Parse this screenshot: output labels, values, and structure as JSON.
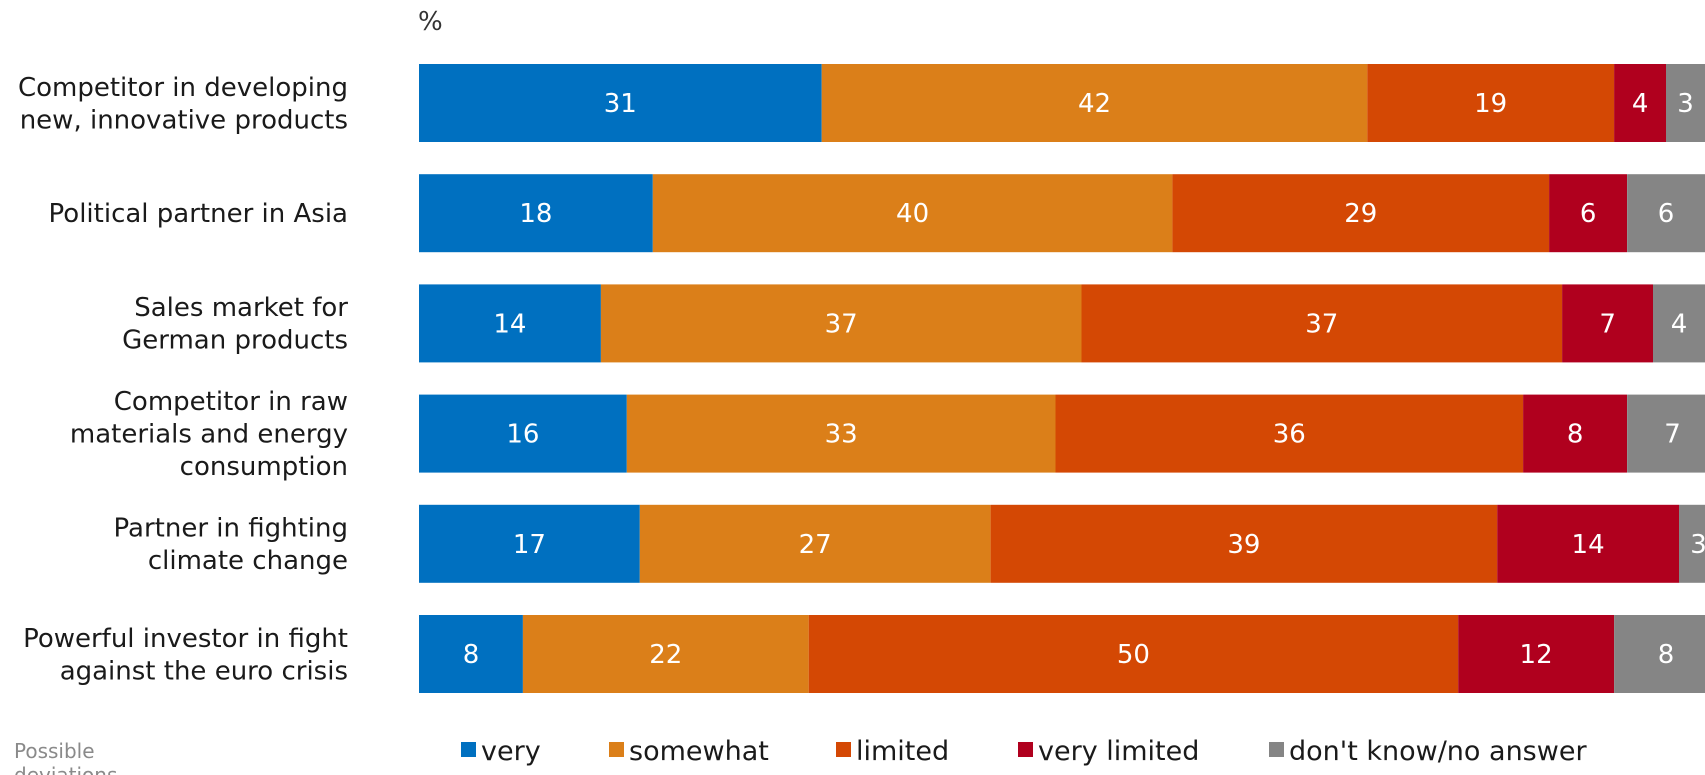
{
  "chart_data": {
    "type": "bar",
    "orientation": "horizontal",
    "stacked": true,
    "unit_label": "%",
    "categories": [
      [
        "Competitor in developing",
        "new, innovative products"
      ],
      [
        "Political partner in Asia"
      ],
      [
        "Sales market for",
        "German products"
      ],
      [
        "Competitor in raw",
        "materials and energy",
        "consumption"
      ],
      [
        "Partner in fighting",
        "climate change"
      ],
      [
        "Powerful investor in fight",
        "against the euro crisis"
      ]
    ],
    "series": [
      {
        "name": "very",
        "color": "#0070c0",
        "values": [
          31,
          18,
          14,
          16,
          17,
          8
        ]
      },
      {
        "name": "somewhat",
        "color": "#db7f19",
        "values": [
          42,
          40,
          37,
          33,
          27,
          22
        ]
      },
      {
        "name": "limited",
        "color": "#d44804",
        "values": [
          19,
          29,
          37,
          36,
          39,
          50
        ]
      },
      {
        "name": "very limited",
        "color": "#b0001e",
        "values": [
          4,
          6,
          7,
          8,
          14,
          12
        ]
      },
      {
        "name": "don't know/no answer",
        "color": "#858585",
        "values": [
          3,
          6,
          4,
          7,
          3,
          8
        ]
      }
    ],
    "xlim": [
      0,
      99
    ],
    "grid": false,
    "legend_position": "bottom",
    "note": [
      "Possible",
      "deviations"
    ]
  }
}
